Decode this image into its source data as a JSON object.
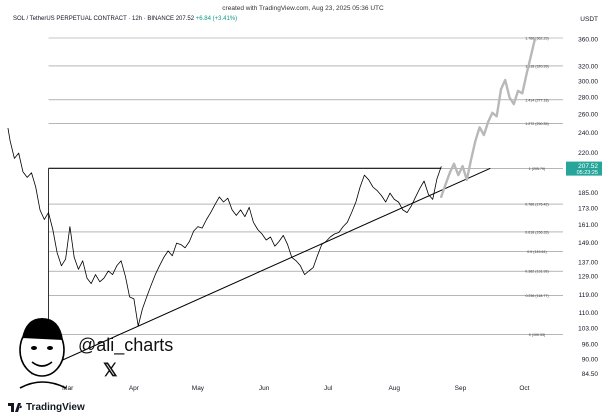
{
  "header": {
    "credit": "created with TradingView.com, Aug 23, 2025 05:36 UTC",
    "symbol": "SOL / TetherUS PERPETUAL CONTRACT · 12h · BINANCE",
    "price": "207.52",
    "change": "+6.84 (+3.41%)",
    "currency": "USDT"
  },
  "watermark": {
    "handle": "@ali_charts",
    "x_logo": "𝕏",
    "brand": "TradingView"
  },
  "price_tag": {
    "price": "207.52",
    "countdown": "05:23:25",
    "color": "#26a69a"
  },
  "colors": {
    "price_line": "#000000",
    "projection": "#b8b8b8",
    "fib_line": "#8a8a8a",
    "pattern": "#000000"
  },
  "chart_data": {
    "type": "line",
    "title": "",
    "xlabel": "",
    "ylabel": "",
    "scale": "log",
    "ylim": [
      84.5,
      375
    ],
    "x_ticks": [
      "Mar",
      "Apr",
      "May",
      "Jun",
      "Jul",
      "Aug",
      "Sep",
      "Oct"
    ],
    "x_tick_dates": [
      "2025-03-01",
      "2025-04-01",
      "2025-05-01",
      "2025-06-01",
      "2025-07-01",
      "2025-08-01",
      "2025-09-01",
      "2025-10-01"
    ],
    "y_ticks": [
      "360.00",
      "320.00",
      "300.00",
      "280.00",
      "260.00",
      "240.00",
      "220.00",
      "207.52",
      "185.00",
      "173.00",
      "161.00",
      "149.00",
      "137.00",
      "129.00",
      "119.00",
      "110.00",
      "103.00",
      "96.00",
      "90.00",
      "84.50"
    ],
    "y_tick_values": [
      360,
      320,
      300,
      280,
      260,
      240,
      220,
      185,
      173,
      161,
      149,
      137,
      129,
      119,
      110,
      103,
      96,
      90,
      84.5
    ],
    "fib_levels": [
      {
        "label": "1.786 (362.23)",
        "value": 362.23
      },
      {
        "label": "1.618 (320.99)",
        "value": 320.99
      },
      {
        "label": "1.414 (277.18)",
        "value": 277.18
      },
      {
        "label": "1.272 (250.35)",
        "value": 250.35
      },
      {
        "label": "1 (205.79)",
        "value": 205.79
      },
      {
        "label": "0.786 (176.42)",
        "value": 176.42
      },
      {
        "label": "0.618 (156.33)",
        "value": 156.33
      },
      {
        "label": "0.5 (143.61)",
        "value": 143.61
      },
      {
        "label": "0.382 (131.92)",
        "value": 131.92
      },
      {
        "label": "0.236 (118.77)",
        "value": 118.77
      },
      {
        "label": "0 (100.33)",
        "value": 100.33
      }
    ],
    "series": [
      {
        "role": "price",
        "x": [
          "2025-02-01",
          "2025-02-02",
          "2025-02-04",
          "2025-02-06",
          "2025-02-08",
          "2025-02-10",
          "2025-02-12",
          "2025-02-14",
          "2025-02-16",
          "2025-02-18",
          "2025-02-20",
          "2025-02-22",
          "2025-02-24",
          "2025-02-26",
          "2025-02-28",
          "2025-03-02",
          "2025-03-04",
          "2025-03-06",
          "2025-03-08",
          "2025-03-10",
          "2025-03-12",
          "2025-03-14",
          "2025-03-16",
          "2025-03-18",
          "2025-03-20",
          "2025-03-22",
          "2025-03-24",
          "2025-03-26",
          "2025-03-28",
          "2025-03-30",
          "2025-04-01",
          "2025-04-03",
          "2025-04-05",
          "2025-04-07",
          "2025-04-09",
          "2025-04-11",
          "2025-04-13",
          "2025-04-15",
          "2025-04-17",
          "2025-04-19",
          "2025-04-21",
          "2025-04-23",
          "2025-04-25",
          "2025-04-27",
          "2025-04-29",
          "2025-05-01",
          "2025-05-03",
          "2025-05-05",
          "2025-05-07",
          "2025-05-09",
          "2025-05-11",
          "2025-05-13",
          "2025-05-15",
          "2025-05-17",
          "2025-05-19",
          "2025-05-21",
          "2025-05-23",
          "2025-05-25",
          "2025-05-27",
          "2025-05-29",
          "2025-05-31",
          "2025-06-02",
          "2025-06-04",
          "2025-06-06",
          "2025-06-08",
          "2025-06-10",
          "2025-06-12",
          "2025-06-14",
          "2025-06-16",
          "2025-06-18",
          "2025-06-20",
          "2025-06-22",
          "2025-06-24",
          "2025-06-26",
          "2025-06-28",
          "2025-06-30",
          "2025-07-02",
          "2025-07-04",
          "2025-07-06",
          "2025-07-08",
          "2025-07-10",
          "2025-07-12",
          "2025-07-14",
          "2025-07-16",
          "2025-07-18",
          "2025-07-20",
          "2025-07-22",
          "2025-07-24",
          "2025-07-26",
          "2025-07-28",
          "2025-07-30",
          "2025-08-01",
          "2025-08-03",
          "2025-08-05",
          "2025-08-07",
          "2025-08-09",
          "2025-08-11",
          "2025-08-13",
          "2025-08-15",
          "2025-08-17",
          "2025-08-19",
          "2025-08-21",
          "2025-08-23"
        ],
        "y": [
          245,
          232,
          215,
          220,
          203,
          198,
          202,
          190,
          172,
          165,
          170,
          158,
          143,
          135,
          139,
          160,
          140,
          133,
          138,
          128,
          125,
          130,
          126,
          128,
          132,
          130,
          135,
          138,
          129,
          118,
          117,
          104,
          112,
          118,
          124,
          130,
          135,
          140,
          144,
          141,
          149,
          148,
          146,
          150,
          157,
          160,
          159,
          165,
          170,
          176,
          182,
          178,
          181,
          172,
          168,
          172,
          167,
          174,
          163,
          158,
          155,
          151,
          153,
          147,
          150,
          154,
          148,
          140,
          138,
          135,
          130,
          132,
          134,
          141,
          148,
          150,
          153,
          155,
          156,
          160,
          163,
          170,
          178,
          190,
          200,
          196,
          190,
          187,
          183,
          178,
          185,
          180,
          178,
          172,
          170,
          175,
          182,
          189,
          195,
          184,
          180,
          197,
          207.52
        ]
      },
      {
        "role": "projection",
        "x": [
          "2025-08-23",
          "2025-08-25",
          "2025-08-27",
          "2025-08-29",
          "2025-08-31",
          "2025-09-02",
          "2025-09-04",
          "2025-09-06",
          "2025-09-08",
          "2025-09-10",
          "2025-09-12",
          "2025-09-14",
          "2025-09-16",
          "2025-09-18",
          "2025-09-20",
          "2025-09-22",
          "2025-09-24",
          "2025-09-26",
          "2025-09-28",
          "2025-09-30",
          "2025-10-02",
          "2025-10-04",
          "2025-10-06"
        ],
        "y": [
          182,
          192,
          202,
          210,
          200,
          208,
          196,
          214,
          232,
          246,
          238,
          252,
          262,
          258,
          290,
          302,
          280,
          272,
          288,
          285,
          310,
          335,
          362
        ]
      }
    ],
    "annotations": [
      {
        "role": "neckline",
        "x": [
          "2025-02-20",
          "2025-08-23"
        ],
        "y": [
          206,
          206
        ]
      },
      {
        "role": "ascending-support",
        "x": [
          "2025-02-12",
          "2025-09-15"
        ],
        "y": [
          84.5,
          206
        ]
      },
      {
        "role": "measured-move",
        "x": [
          "2025-02-20",
          "2025-02-20"
        ],
        "y": [
          206,
          100.33
        ]
      }
    ]
  }
}
